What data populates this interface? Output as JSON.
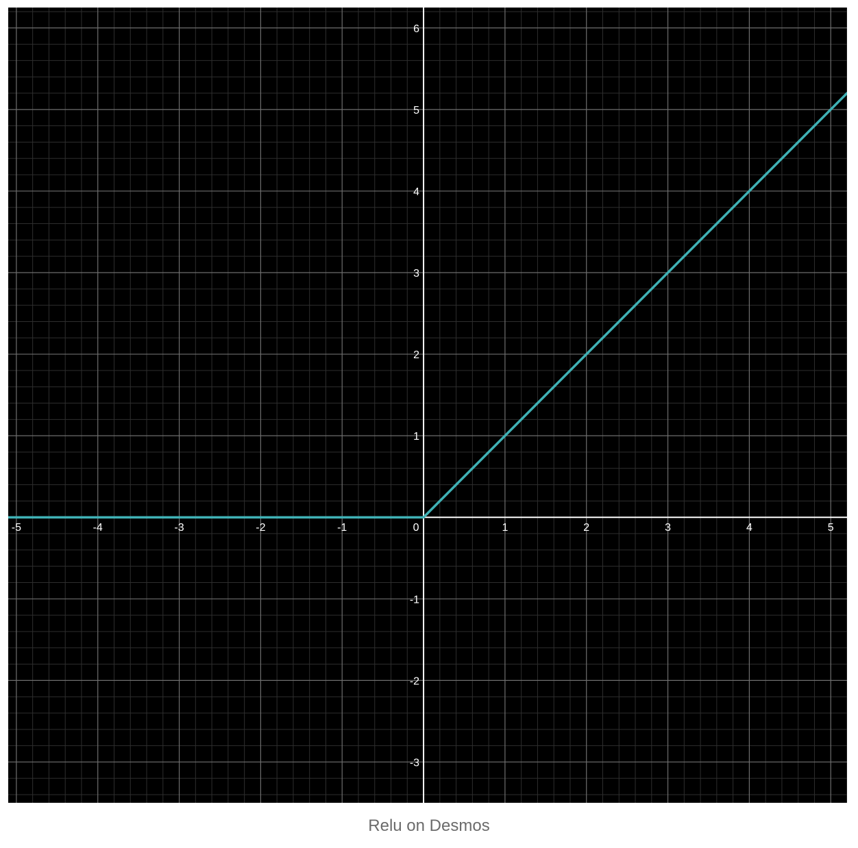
{
  "caption": "Relu on Desmos",
  "colors": {
    "background": "#000000",
    "axis": "#ffffff",
    "grid_major": "#6e6e6e",
    "grid_minor": "#2e2e2e",
    "curve": "#3fb1b5",
    "tick_label": "#ffffff",
    "caption": "#6b6b6b"
  },
  "chart_data": {
    "type": "line",
    "title": "",
    "xlabel": "",
    "ylabel": "",
    "xlim": [
      -5.1,
      5.2
    ],
    "ylim": [
      -3.5,
      6.25
    ],
    "grid": true,
    "minor_step": 0.2,
    "x_ticks": [
      -5,
      -4,
      -3,
      -2,
      -1,
      0,
      1,
      2,
      3,
      4,
      5
    ],
    "y_ticks": [
      -3,
      -2,
      -1,
      1,
      2,
      3,
      4,
      5,
      6
    ],
    "series": [
      {
        "expression": "max(0, x)",
        "x": [
          -5.1,
          0,
          5.2
        ],
        "y": [
          0,
          0,
          5.2
        ]
      }
    ]
  }
}
